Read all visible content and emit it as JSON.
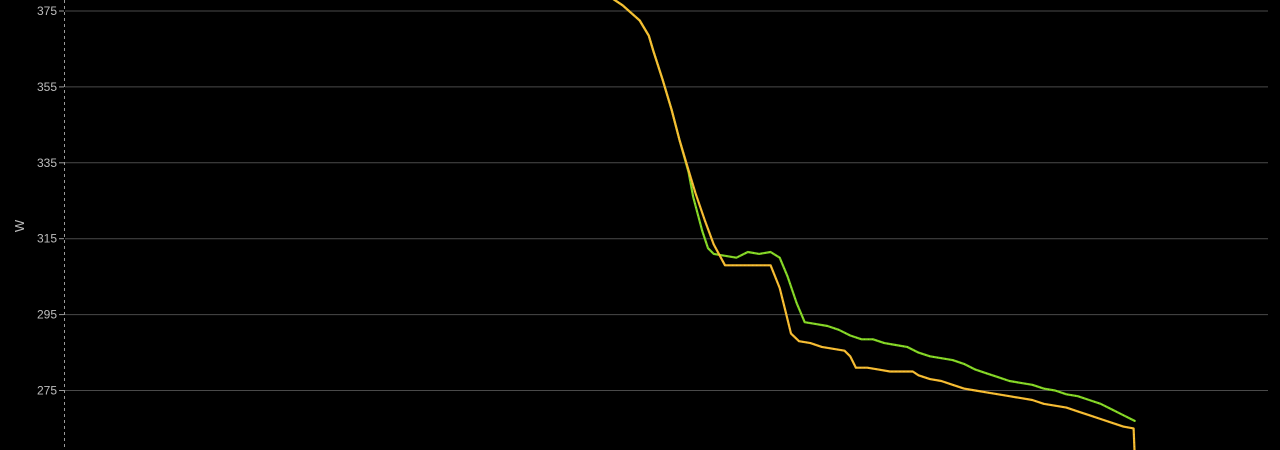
{
  "chart_data": {
    "type": "line",
    "title": "",
    "xlabel": "",
    "ylabel": "W",
    "y_ticks": [
      "375",
      "355",
      "335",
      "315",
      "295",
      "275"
    ],
    "ylim": [
      260,
      378
    ],
    "xlim": [
      0,
      100
    ],
    "grid": true,
    "legend": "none",
    "series": [
      {
        "color": "#7ed321",
        "points": [
          [
            48.0,
            378.5
          ],
          [
            49.0,
            376.5
          ],
          [
            50.5,
            372.5
          ],
          [
            51.3,
            368.5
          ],
          [
            51.7,
            364.5
          ],
          [
            52.5,
            357.0
          ],
          [
            53.3,
            349.0
          ],
          [
            54.0,
            341.0
          ],
          [
            54.8,
            332.5
          ],
          [
            55.2,
            326.0
          ],
          [
            56.0,
            317.0
          ],
          [
            56.5,
            312.5
          ],
          [
            57.0,
            311.0
          ],
          [
            58.0,
            310.5
          ],
          [
            59.0,
            310.0
          ],
          [
            60.0,
            311.5
          ],
          [
            61.0,
            311.0
          ],
          [
            62.0,
            311.5
          ],
          [
            62.8,
            310.0
          ],
          [
            63.5,
            305.0
          ],
          [
            64.3,
            298.0
          ],
          [
            65.0,
            293.0
          ],
          [
            66.0,
            292.5
          ],
          [
            67.0,
            292.0
          ],
          [
            68.0,
            291.0
          ],
          [
            69.0,
            289.5
          ],
          [
            70.0,
            288.5
          ],
          [
            71.0,
            288.5
          ],
          [
            72.0,
            287.5
          ],
          [
            73.0,
            287.0
          ],
          [
            74.0,
            286.5
          ],
          [
            75.0,
            285.0
          ],
          [
            76.0,
            284.0
          ],
          [
            77.0,
            283.5
          ],
          [
            78.0,
            283.0
          ],
          [
            79.0,
            282.0
          ],
          [
            80.0,
            280.5
          ],
          [
            81.0,
            279.5
          ],
          [
            82.0,
            278.5
          ],
          [
            83.0,
            277.5
          ],
          [
            84.0,
            277.0
          ],
          [
            85.0,
            276.5
          ],
          [
            86.0,
            275.5
          ],
          [
            87.0,
            275.0
          ],
          [
            88.0,
            274.0
          ],
          [
            89.0,
            273.5
          ],
          [
            90.0,
            272.5
          ],
          [
            91.0,
            271.5
          ],
          [
            92.0,
            270.0
          ],
          [
            93.0,
            268.5
          ],
          [
            94.0,
            267.0
          ]
        ]
      },
      {
        "color": "#f5b92e",
        "points": [
          [
            48.0,
            378.5
          ],
          [
            49.0,
            376.5
          ],
          [
            50.5,
            372.5
          ],
          [
            51.3,
            368.5
          ],
          [
            51.7,
            364.5
          ],
          [
            52.5,
            357.0
          ],
          [
            53.3,
            349.0
          ],
          [
            54.0,
            341.0
          ],
          [
            54.8,
            333.0
          ],
          [
            55.4,
            327.0
          ],
          [
            56.2,
            320.0
          ],
          [
            57.0,
            313.5
          ],
          [
            58.0,
            308.0
          ],
          [
            59.0,
            308.0
          ],
          [
            60.0,
            308.0
          ],
          [
            61.0,
            308.0
          ],
          [
            62.0,
            308.0
          ],
          [
            62.8,
            302.0
          ],
          [
            63.3,
            296.0
          ],
          [
            63.8,
            290.0
          ],
          [
            64.5,
            288.0
          ],
          [
            65.5,
            287.5
          ],
          [
            66.5,
            286.5
          ],
          [
            67.5,
            286.0
          ],
          [
            68.5,
            285.5
          ],
          [
            69.0,
            284.0
          ],
          [
            69.5,
            281.0
          ],
          [
            70.5,
            281.0
          ],
          [
            71.5,
            280.5
          ],
          [
            72.5,
            280.0
          ],
          [
            73.5,
            280.0
          ],
          [
            74.5,
            280.0
          ],
          [
            75.0,
            279.0
          ],
          [
            76.0,
            278.0
          ],
          [
            77.0,
            277.5
          ],
          [
            78.0,
            276.5
          ],
          [
            79.0,
            275.5
          ],
          [
            80.0,
            275.0
          ],
          [
            81.0,
            274.5
          ],
          [
            82.0,
            274.0
          ],
          [
            83.0,
            273.5
          ],
          [
            84.0,
            273.0
          ],
          [
            85.0,
            272.5
          ],
          [
            86.0,
            271.5
          ],
          [
            87.0,
            271.0
          ],
          [
            88.0,
            270.5
          ],
          [
            89.0,
            269.5
          ],
          [
            90.0,
            268.5
          ],
          [
            91.0,
            267.5
          ],
          [
            92.0,
            266.5
          ],
          [
            93.0,
            265.5
          ],
          [
            93.9,
            265.0
          ],
          [
            94.0,
            258.0
          ]
        ]
      }
    ]
  }
}
